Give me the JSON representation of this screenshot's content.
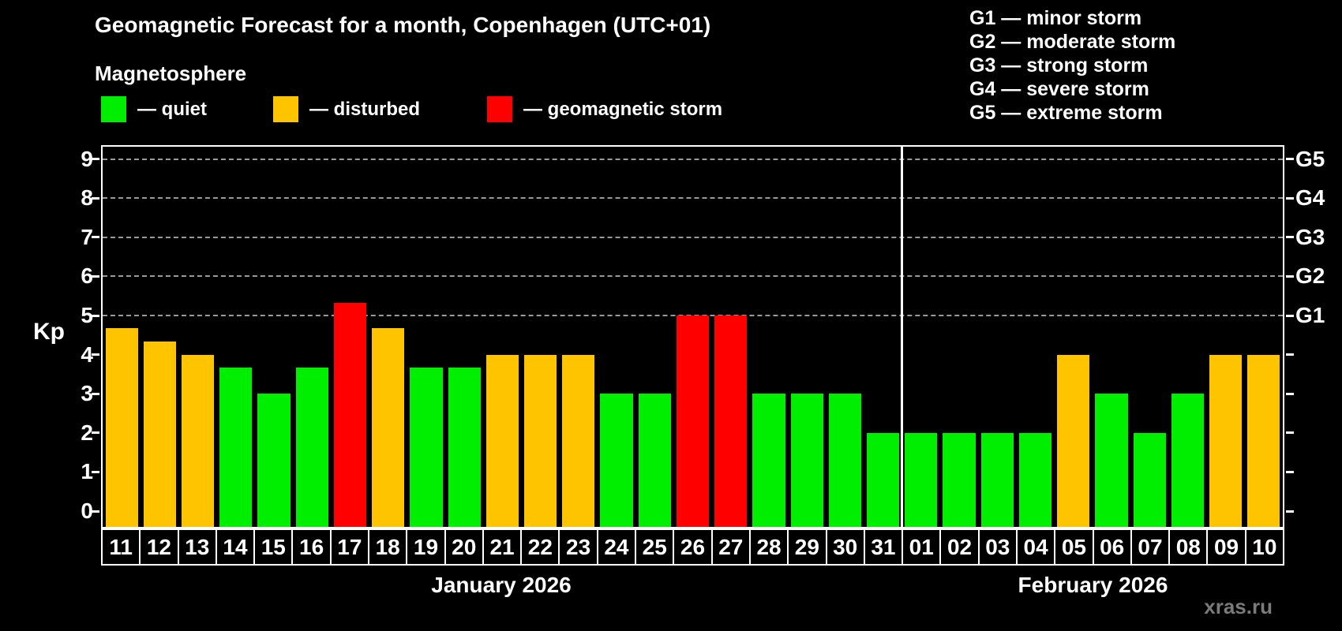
{
  "header": {
    "title": "Geomagnetic Forecast for a month, Copenhagen (UTC+01)",
    "subtitle": "Magnetosphere"
  },
  "legend": {
    "items": [
      {
        "key": "quiet",
        "label": "— quiet",
        "color": "#00ee00"
      },
      {
        "key": "disturbed",
        "label": "— disturbed",
        "color": "#ffc400"
      },
      {
        "key": "storm",
        "label": "— geomagnetic storm",
        "color": "#ff0000"
      }
    ]
  },
  "g_legend": {
    "lines": [
      "G1 — minor storm",
      "G2 — moderate storm",
      "G3 — strong storm",
      "G4 — severe storm",
      "G5 — extreme storm"
    ]
  },
  "axis": {
    "y_title": "Kp"
  },
  "months": {
    "left": "January 2026",
    "right": "February 2026"
  },
  "watermark": "xras.ru",
  "colors": {
    "quiet": "#00ee00",
    "disturbed": "#ffc400",
    "storm": "#ff0000",
    "grid": "#9a9a9a",
    "frame": "#ffffff",
    "background": "#000000"
  },
  "chart_data": {
    "type": "bar",
    "title": "Geomagnetic Forecast for a month, Copenhagen (UTC+01)",
    "subtitle": "Magnetosphere",
    "ylabel": "Kp",
    "ylim": [
      0,
      9
    ],
    "grid": "dashed horizontal at Kp 5-9 only",
    "legend_position": "top-left",
    "gridlines": [
      5,
      6,
      7,
      8,
      9
    ],
    "right_axis_labels": [
      {
        "kp": 5,
        "label": "G1"
      },
      {
        "kp": 6,
        "label": "G2"
      },
      {
        "kp": 7,
        "label": "G3"
      },
      {
        "kp": 8,
        "label": "G4"
      },
      {
        "kp": 9,
        "label": "G5"
      }
    ],
    "month_divider_after_index": 20,
    "days": [
      {
        "date": "11",
        "month": "January 2026",
        "kp": 4.67,
        "status": "disturbed"
      },
      {
        "date": "12",
        "month": "January 2026",
        "kp": 4.33,
        "status": "disturbed"
      },
      {
        "date": "13",
        "month": "January 2026",
        "kp": 4.0,
        "status": "disturbed"
      },
      {
        "date": "14",
        "month": "January 2026",
        "kp": 3.67,
        "status": "quiet"
      },
      {
        "date": "15",
        "month": "January 2026",
        "kp": 3.0,
        "status": "quiet"
      },
      {
        "date": "16",
        "month": "January 2026",
        "kp": 3.67,
        "status": "quiet"
      },
      {
        "date": "17",
        "month": "January 2026",
        "kp": 5.33,
        "status": "storm"
      },
      {
        "date": "18",
        "month": "January 2026",
        "kp": 4.67,
        "status": "disturbed"
      },
      {
        "date": "19",
        "month": "January 2026",
        "kp": 3.67,
        "status": "quiet"
      },
      {
        "date": "20",
        "month": "January 2026",
        "kp": 3.67,
        "status": "quiet"
      },
      {
        "date": "21",
        "month": "January 2026",
        "kp": 4.0,
        "status": "disturbed"
      },
      {
        "date": "22",
        "month": "January 2026",
        "kp": 4.0,
        "status": "disturbed"
      },
      {
        "date": "23",
        "month": "January 2026",
        "kp": 4.0,
        "status": "disturbed"
      },
      {
        "date": "24",
        "month": "January 2026",
        "kp": 3.0,
        "status": "quiet"
      },
      {
        "date": "25",
        "month": "January 2026",
        "kp": 3.0,
        "status": "quiet"
      },
      {
        "date": "26",
        "month": "January 2026",
        "kp": 5.0,
        "status": "storm"
      },
      {
        "date": "27",
        "month": "January 2026",
        "kp": 5.0,
        "status": "storm"
      },
      {
        "date": "28",
        "month": "January 2026",
        "kp": 3.0,
        "status": "quiet"
      },
      {
        "date": "29",
        "month": "January 2026",
        "kp": 3.0,
        "status": "quiet"
      },
      {
        "date": "30",
        "month": "January 2026",
        "kp": 3.0,
        "status": "quiet"
      },
      {
        "date": "31",
        "month": "January 2026",
        "kp": 2.0,
        "status": "quiet"
      },
      {
        "date": "01",
        "month": "February 2026",
        "kp": 2.0,
        "status": "quiet"
      },
      {
        "date": "02",
        "month": "February 2026",
        "kp": 2.0,
        "status": "quiet"
      },
      {
        "date": "03",
        "month": "February 2026",
        "kp": 2.0,
        "status": "quiet"
      },
      {
        "date": "04",
        "month": "February 2026",
        "kp": 2.0,
        "status": "quiet"
      },
      {
        "date": "05",
        "month": "February 2026",
        "kp": 4.0,
        "status": "disturbed"
      },
      {
        "date": "06",
        "month": "February 2026",
        "kp": 3.0,
        "status": "quiet"
      },
      {
        "date": "07",
        "month": "February 2026",
        "kp": 2.0,
        "status": "quiet"
      },
      {
        "date": "08",
        "month": "February 2026",
        "kp": 3.0,
        "status": "quiet"
      },
      {
        "date": "09",
        "month": "February 2026",
        "kp": 4.0,
        "status": "disturbed"
      },
      {
        "date": "10",
        "month": "February 2026",
        "kp": 4.0,
        "status": "disturbed"
      }
    ]
  }
}
